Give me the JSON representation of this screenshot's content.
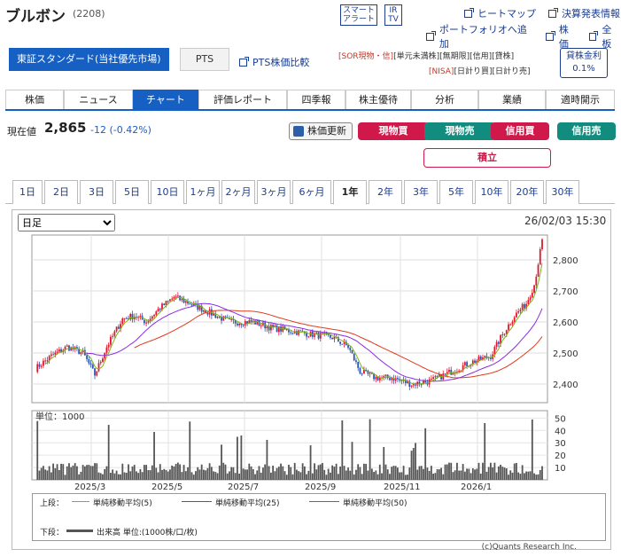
{
  "stock": {
    "name": "ブルボン",
    "code": "(2208)"
  },
  "header": {
    "smart_alert": [
      "スマート",
      "アラート"
    ],
    "ir_tv": [
      "IR",
      "TV"
    ],
    "links_row1": [
      "ヒートマップ",
      "決算発表情報"
    ],
    "links_row2": [
      "ポートフォリオへ追加",
      "株価",
      "全板"
    ]
  },
  "market": {
    "selected": "東証スタンダード(当社優先市場)",
    "pts": "PTS",
    "pts_compare": "PTS株価比較"
  },
  "tags": {
    "row1": [
      "[SOR現物・信]",
      "[単元未満株]",
      "[無期限]",
      "[信用]",
      "[貸株]"
    ],
    "row2": [
      "[NISA]",
      "[日計り買]",
      "[日計り売]"
    ]
  },
  "lending": {
    "label": "貸株金利",
    "rate": "0.1%"
  },
  "tabs": [
    {
      "label": "株価",
      "active": false
    },
    {
      "label": "ニュース",
      "active": false
    },
    {
      "label": "チャート",
      "active": true
    },
    {
      "label": "評価レポート",
      "active": false
    },
    {
      "label": "四季報",
      "active": false
    },
    {
      "label": "株主優待",
      "active": false
    },
    {
      "label": "分析",
      "active": false
    },
    {
      "label": "業績",
      "active": false
    },
    {
      "label": "適時開示",
      "active": false
    }
  ],
  "quote": {
    "label": "現在値",
    "price": "2,865",
    "change": "-12 (-0.42%)"
  },
  "actions": {
    "refresh": "株価更新",
    "spot_buy": "現物買",
    "spot_sell": "現物売",
    "margin_buy": "信用買",
    "margin_sell": "信用売",
    "tsumitate": "積立"
  },
  "ranges": [
    {
      "label": "1日"
    },
    {
      "label": "2日"
    },
    {
      "label": "3日"
    },
    {
      "label": "5日"
    },
    {
      "label": "10日"
    },
    {
      "label": "1ヶ月"
    },
    {
      "label": "2ヶ月"
    },
    {
      "label": "3ヶ月"
    },
    {
      "label": "6ヶ月"
    },
    {
      "label": "1年",
      "active": true
    },
    {
      "label": "2年"
    },
    {
      "label": "3年"
    },
    {
      "label": "5年"
    },
    {
      "label": "10年"
    },
    {
      "label": "20年"
    },
    {
      "label": "30年"
    }
  ],
  "chart": {
    "period_select": "日足",
    "timestamp": "26/02/03 15:30",
    "volume_unit": "単位：1000",
    "price_ticks": [
      "2,800",
      "2,700",
      "2,600",
      "2,500",
      "2,400"
    ],
    "volume_ticks": [
      "50",
      "40",
      "30",
      "20",
      "10"
    ],
    "x_ticks": [
      "2025/3",
      "2025/5",
      "2025/7",
      "2025/9",
      "2025/11",
      "2026/1"
    ],
    "colors": {
      "up": "#e0182e",
      "down": "#2b55b5",
      "ma5": "#7cb518",
      "ma25": "#8a2be2",
      "ma50": "#e03a1e",
      "volume": "#555555"
    }
  },
  "legend": {
    "upper_label": "上段：",
    "ma5": "単純移動平均(5)",
    "ma25": "単純移動平均(25)",
    "ma50": "単純移動平均(50)",
    "lower_label": "下段：",
    "volume": "出来高 単位:(1000株/口/枚)"
  },
  "copyright": "(c)Quants Research Inc."
}
